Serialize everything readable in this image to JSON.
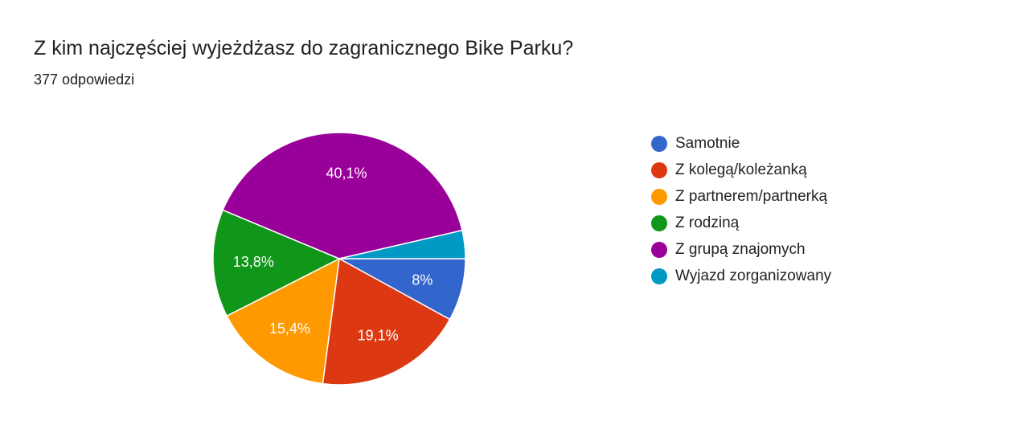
{
  "header": {
    "title": "Z kim najczęściej wyjeżdżasz do zagranicznego Bike Parku?",
    "subtitle": "377 odpowiedzi"
  },
  "chart_data": {
    "type": "pie",
    "legend_position": "right",
    "start": "3 o'clock",
    "direction": "clockwise",
    "categories": [
      "Samotnie",
      "Z kolegą/koleżanką",
      "Z partnerem/partnerką",
      "Z rodziną",
      "Z grupą znajomych",
      "Wyjazd zorganizowany"
    ],
    "values": [
      8,
      19.1,
      15.4,
      13.8,
      40.1,
      3.6
    ],
    "value_labels": [
      "8%",
      "19,1%",
      "15,4%",
      "13,8%",
      "40,1%",
      ""
    ],
    "colors": [
      "#3366cc",
      "#dc3912",
      "#ff9900",
      "#109618",
      "#990099",
      "#0099c6"
    ]
  }
}
